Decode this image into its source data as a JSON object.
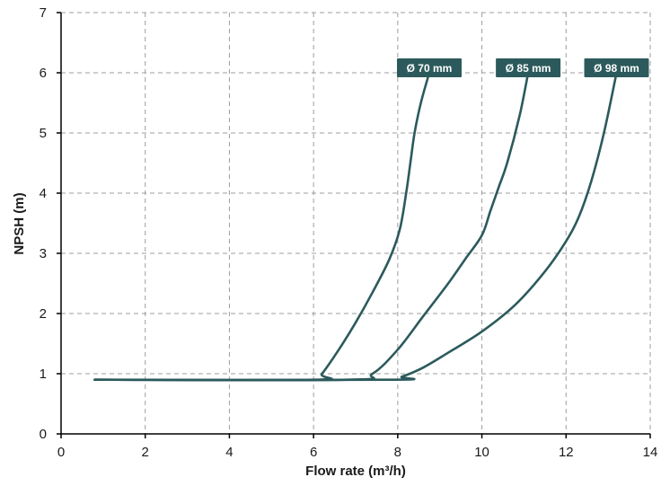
{
  "chart_data": {
    "type": "line",
    "title": "",
    "xlabel": "Flow rate (m³/h)",
    "ylabel": "NPSH (m)",
    "xlim": [
      0,
      14
    ],
    "ylim": [
      0,
      7
    ],
    "xticks": [
      "0",
      "2",
      "4",
      "6",
      "8",
      "10",
      "12",
      "14"
    ],
    "yticks": [
      "0",
      "1",
      "2",
      "3",
      "4",
      "5",
      "6",
      "7"
    ],
    "grid": true,
    "series_color": "#2c5a5c",
    "label_bg_color": "#2c5a5c",
    "series": [
      {
        "name": "Ø 70 mm",
        "points": [
          [
            0.8,
            0.9
          ],
          [
            6.0,
            0.9
          ],
          [
            6.2,
            1.0
          ],
          [
            6.6,
            1.4
          ],
          [
            7.0,
            1.85
          ],
          [
            7.4,
            2.35
          ],
          [
            7.8,
            2.9
          ],
          [
            8.05,
            3.4
          ],
          [
            8.2,
            4.0
          ],
          [
            8.3,
            4.5
          ],
          [
            8.4,
            5.0
          ],
          [
            8.55,
            5.5
          ],
          [
            8.75,
            6.0
          ]
        ]
      },
      {
        "name": "Ø 85 mm",
        "points": [
          [
            0.8,
            0.9
          ],
          [
            6.8,
            0.9
          ],
          [
            7.4,
            1.0
          ],
          [
            8.0,
            1.4
          ],
          [
            8.6,
            1.95
          ],
          [
            9.2,
            2.5
          ],
          [
            9.6,
            2.9
          ],
          [
            10.0,
            3.3
          ],
          [
            10.2,
            3.7
          ],
          [
            10.4,
            4.1
          ],
          [
            10.6,
            4.5
          ],
          [
            10.9,
            5.3
          ],
          [
            11.1,
            6.0
          ]
        ]
      },
      {
        "name": "Ø 98 mm",
        "points": [
          [
            0.8,
            0.9
          ],
          [
            7.8,
            0.9
          ],
          [
            8.1,
            0.95
          ],
          [
            8.6,
            1.1
          ],
          [
            9.2,
            1.35
          ],
          [
            10.0,
            1.7
          ],
          [
            10.8,
            2.15
          ],
          [
            11.5,
            2.7
          ],
          [
            12.0,
            3.2
          ],
          [
            12.3,
            3.6
          ],
          [
            12.6,
            4.2
          ],
          [
            12.9,
            5.0
          ],
          [
            13.2,
            6.0
          ]
        ]
      }
    ]
  }
}
